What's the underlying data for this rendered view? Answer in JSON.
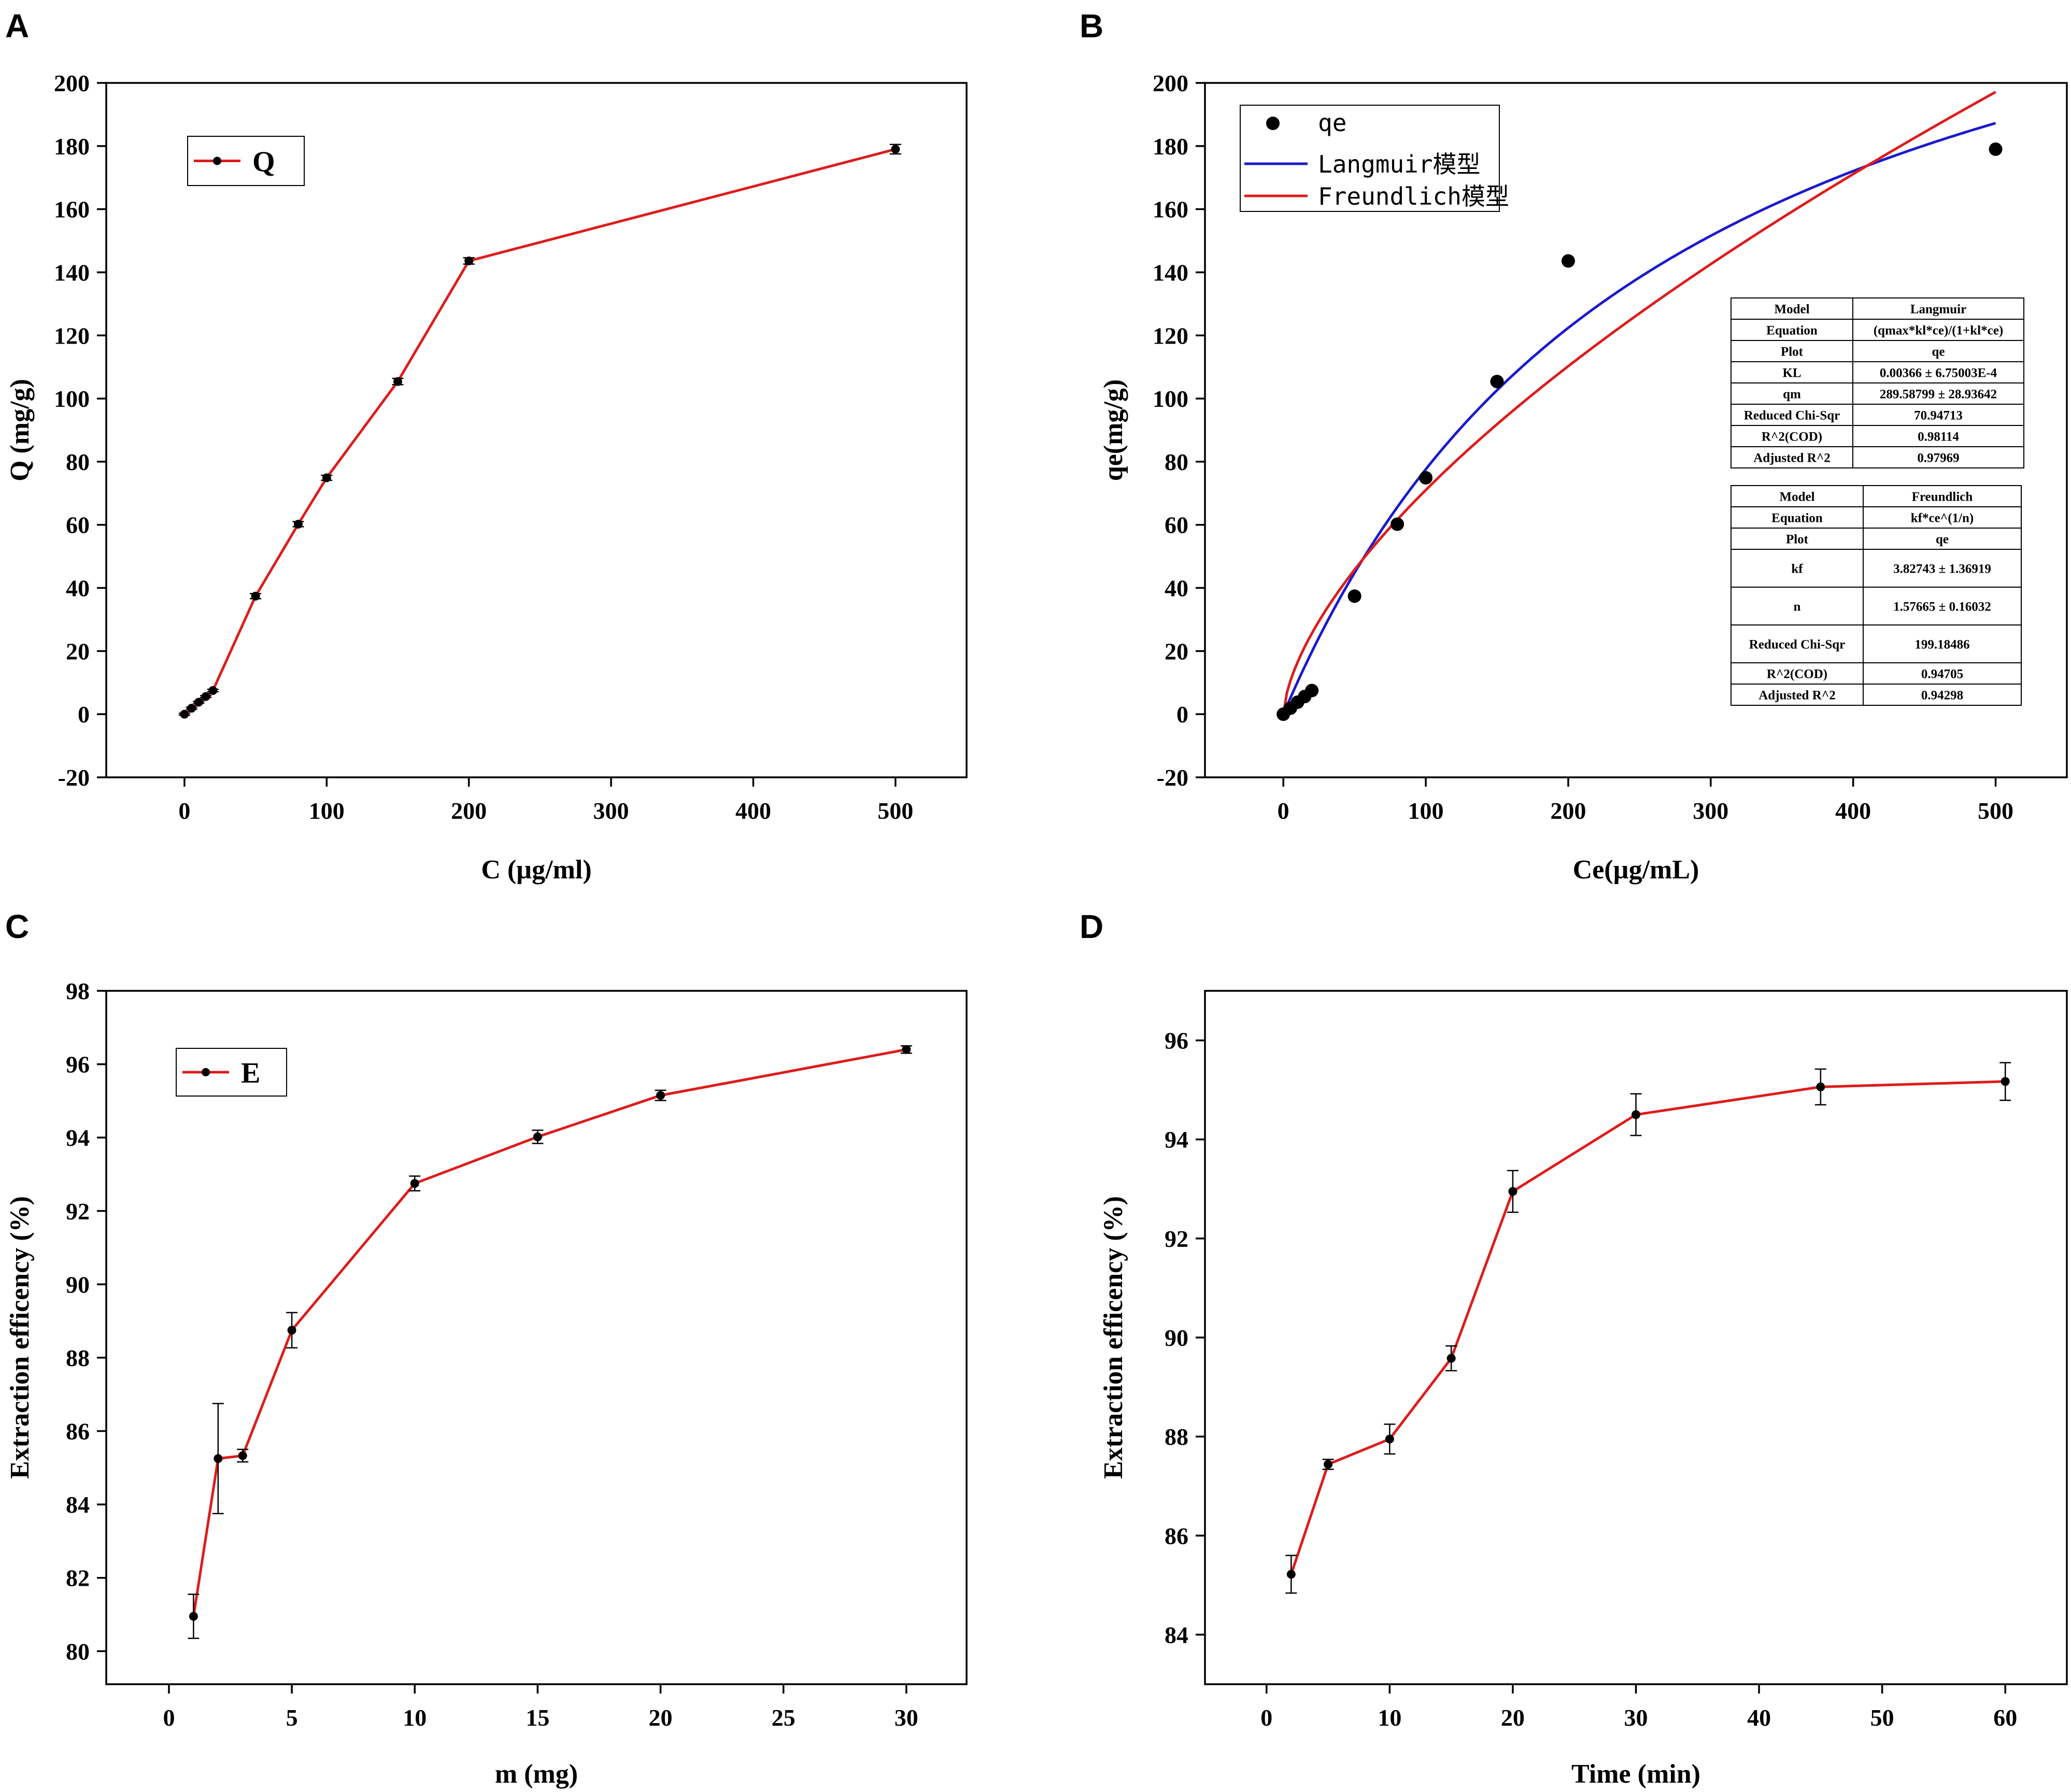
{
  "colors": {
    "line_red": "#dd1c1c",
    "line_blue": "#1a1acc",
    "axis": "#000000",
    "point": "#000000"
  },
  "chart_data": [
    {
      "id": "A",
      "type": "line",
      "panel_label": "A",
      "title": "",
      "xlabel": "C (µg/ml)",
      "ylabel": "Q (mg/g)",
      "xlim": [
        -55,
        550
      ],
      "ylim": [
        -20,
        200
      ],
      "xticks": [
        0,
        100,
        200,
        300,
        400,
        500
      ],
      "xtick_labels": [
        "0",
        "100",
        "200",
        "300",
        "400",
        "500"
      ],
      "yticks": [
        -20,
        0,
        20,
        40,
        60,
        80,
        100,
        120,
        140,
        160,
        180,
        200
      ],
      "ytick_labels": [
        "-20",
        "0",
        "20",
        "40",
        "60",
        "80",
        "100",
        "120",
        "140",
        "160",
        "180",
        "200"
      ],
      "legend": {
        "placement": "top-left",
        "entries": [
          {
            "label": "Q",
            "style": "line-marker"
          }
        ]
      },
      "series": [
        {
          "name": "Q",
          "x": [
            0,
            5,
            10,
            15,
            20,
            50,
            80,
            100,
            150,
            200,
            500
          ],
          "y": [
            0,
            1.9,
            3.8,
            5.6,
            7.5,
            37.4,
            60.2,
            74.9,
            105.4,
            143.6,
            179.0
          ],
          "err": [
            0.3,
            0.3,
            0.3,
            0.3,
            0.4,
            0.8,
            0.8,
            0.8,
            1.0,
            1.0,
            1.5
          ]
        }
      ]
    },
    {
      "id": "B",
      "type": "scatter",
      "panel_label": "B",
      "title": "",
      "xlabel": "Ce(µg/mL)",
      "ylabel": "qe(mg/g)",
      "xlim": [
        -55,
        550
      ],
      "ylim": [
        -20,
        200
      ],
      "xticks": [
        0,
        100,
        200,
        300,
        400,
        500
      ],
      "xtick_labels": [
        "0",
        "100",
        "200",
        "300",
        "400",
        "500"
      ],
      "yticks": [
        -20,
        0,
        20,
        40,
        60,
        80,
        100,
        120,
        140,
        160,
        180,
        200
      ],
      "ytick_labels": [
        "-20",
        "0",
        "20",
        "40",
        "60",
        "80",
        "100",
        "120",
        "140",
        "160",
        "180",
        "200"
      ],
      "legend": {
        "placement": "top-left",
        "entries": [
          {
            "label": "qe",
            "style": "point"
          },
          {
            "label": "Langmuir模型",
            "style": "line-blue"
          },
          {
            "label": "Freundlich模型",
            "style": "line-red"
          }
        ]
      },
      "scatter": {
        "name": "qe",
        "x": [
          0,
          5,
          10,
          15,
          20,
          50,
          80,
          100,
          150,
          200,
          500
        ],
        "y": [
          0,
          1.9,
          3.8,
          5.6,
          7.5,
          37.4,
          60.2,
          74.9,
          105.4,
          143.6,
          179.0
        ]
      },
      "fits": [
        {
          "name": "Langmuir模型",
          "model": "langmuir",
          "qm": 289.58799,
          "kl": 0.00366,
          "x_range": [
            0,
            500
          ]
        },
        {
          "name": "Freundlich模型",
          "model": "freundlich",
          "kf": 3.82743,
          "n": 1.57665,
          "x_range": [
            0,
            500
          ]
        }
      ],
      "tables": [
        {
          "rows": [
            [
              "Model",
              "Langmuir"
            ],
            [
              "Equation",
              "(qmax*kl*ce)/(1+kl*ce)"
            ],
            [
              "Plot",
              "qe"
            ],
            [
              "KL",
              "0.00366 ± 6.75003E-4"
            ],
            [
              "qm",
              "289.58799 ± 28.93642"
            ],
            [
              "Reduced Chi-Sqr",
              "70.94713"
            ],
            [
              "R^2(COD)",
              "0.98114"
            ],
            [
              "Adjusted R^2",
              "0.97969"
            ]
          ]
        },
        {
          "rows": [
            [
              "Model",
              "Freundlich"
            ],
            [
              "Equation",
              "kf*ce^(1/n)"
            ],
            [
              "Plot",
              "qe"
            ],
            [
              "kf",
              "3.82743 ± 1.36919"
            ],
            [
              "n",
              "1.57665 ± 0.16032"
            ],
            [
              "Reduced Chi-Sqr",
              "199.18486"
            ],
            [
              "R^2(COD)",
              "0.94705"
            ],
            [
              "Adjusted R^2",
              "0.94298"
            ]
          ]
        }
      ]
    },
    {
      "id": "C",
      "type": "line",
      "panel_label": "C",
      "title": "",
      "xlabel": "m (mg)",
      "ylabel": "Extraction efficency (%)",
      "xlim": [
        -2.55,
        32.45
      ],
      "ylim": [
        79.1,
        98
      ],
      "xticks": [
        0,
        5,
        10,
        15,
        20,
        25,
        30
      ],
      "xtick_labels": [
        "0",
        "5",
        "10",
        "15",
        "20",
        "25",
        "30"
      ],
      "yticks": [
        80,
        82,
        84,
        86,
        88,
        90,
        92,
        94,
        96,
        98
      ],
      "ytick_labels": [
        "80",
        "82",
        "84",
        "86",
        "88",
        "90",
        "92",
        "94",
        "96",
        "98"
      ],
      "legend": {
        "placement": "top-left",
        "entries": [
          {
            "label": "E",
            "style": "line-marker"
          }
        ]
      },
      "series": [
        {
          "name": "E",
          "x": [
            1,
            2,
            3,
            5,
            10,
            15,
            20,
            30
          ],
          "y": [
            80.95,
            85.25,
            85.33,
            88.75,
            92.75,
            94.02,
            95.15,
            96.4
          ],
          "err": [
            0.6,
            1.5,
            0.17,
            0.48,
            0.2,
            0.18,
            0.14,
            0.1
          ]
        }
      ]
    },
    {
      "id": "D",
      "type": "line",
      "panel_label": "D",
      "title": "",
      "xlabel": "Time (min)",
      "ylabel": "Extraction efficency (%)",
      "xlim": [
        -5,
        65
      ],
      "ylim": [
        83,
        97
      ],
      "xticks": [
        0,
        10,
        20,
        30,
        40,
        50,
        60
      ],
      "xtick_labels": [
        "0",
        "10",
        "20",
        "30",
        "40",
        "50",
        "60"
      ],
      "yticks": [
        84,
        86,
        88,
        90,
        92,
        94,
        96
      ],
      "ytick_labels": [
        "84",
        "86",
        "88",
        "90",
        "92",
        "94",
        "96"
      ],
      "legend": null,
      "series": [
        {
          "name": "E",
          "x": [
            2,
            5,
            10,
            15,
            20,
            30,
            45,
            60
          ],
          "y": [
            85.22,
            87.44,
            87.95,
            89.58,
            92.95,
            94.5,
            95.06,
            95.17
          ],
          "err": [
            0.38,
            0.1,
            0.3,
            0.25,
            0.42,
            0.42,
            0.36,
            0.38
          ]
        }
      ]
    }
  ]
}
